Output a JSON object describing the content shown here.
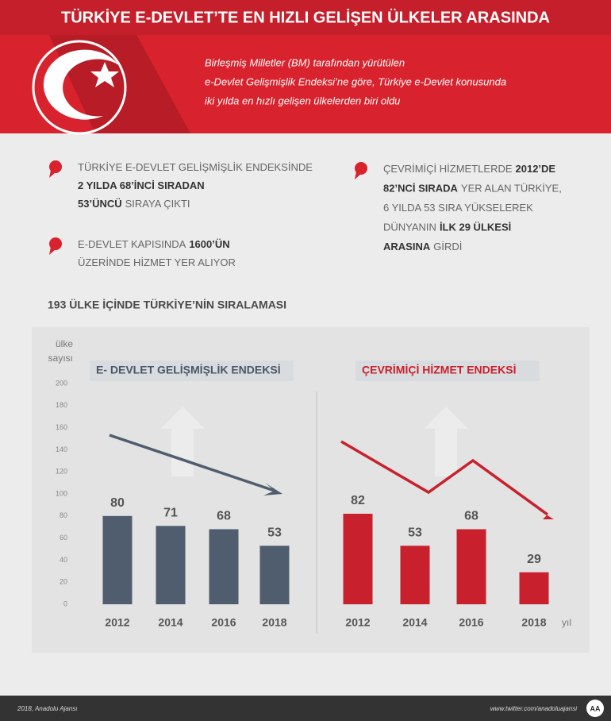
{
  "header": {
    "title": "TÜRKİYE E-DEVLET’TE EN HIZLI GELİŞEN ÜLKELER ARASINDA",
    "subtitle_lines": [
      "Birleşmiş Milletler (BM) tarafından yürütülen",
      "e-Devlet Gelişmişlik Endeksi’ne göre, Türkiye e-Devlet konusunda",
      "iki yılda en hızlı gelişen ülkelerden biri oldu"
    ]
  },
  "bullets": [
    {
      "lines": [
        [
          {
            "text": "TÜRKİYE E-DEVLET GELİŞMİŞLİK ENDEKSİNDE",
            "bold": false
          }
        ],
        [
          {
            "text": "2 YILDA 68’İNCİ SIRADAN",
            "bold": true
          }
        ],
        [
          {
            "text": "53’ÜNCÜ",
            "bold": true
          },
          {
            "text": "SIRAYA ÇIKTI",
            "bold": false
          }
        ]
      ]
    },
    {
      "lines": [
        [
          {
            "text": "E-DEVLET KAPISINDA",
            "bold": false
          },
          {
            "text": "1600’ÜN",
            "bold": true
          }
        ],
        [
          {
            "text": "ÜZERİNDE HİZMET YER ALIYOR",
            "bold": false
          }
        ]
      ]
    },
    {
      "lines": [
        [
          {
            "text": "ÇEVRİMİÇİ HİZMETLERDE",
            "bold": false
          },
          {
            "text": "2012’DE",
            "bold": true
          }
        ],
        [
          {
            "text": "82’NCİ SIRADA",
            "bold": true
          },
          {
            "text": "YER ALAN TÜRKİYE,",
            "bold": false
          }
        ],
        [
          {
            "text": "6 YILDA 53 SIRA YÜKSELEREK",
            "bold": false
          }
        ],
        [
          {
            "text": "DÜNYANIN",
            "bold": false
          },
          {
            "text": "İLK 29 ÜLKESİ",
            "bold": true
          }
        ],
        [
          {
            "text": "ARASINA",
            "bold": true
          },
          {
            "text": "GİRDİ",
            "bold": false
          }
        ]
      ]
    }
  ],
  "section_title": "193 ÜLKE İÇİNDE TÜRKİYE’NİN SIRALAMASI",
  "chart_data": [
    {
      "type": "bar",
      "title": "E- DEVLET GELİŞMİŞLİK ENDEKSİ",
      "categories": [
        "2012",
        "2014",
        "2016",
        "2018"
      ],
      "values": [
        80,
        71,
        68,
        53
      ],
      "color": "#4f5d6e",
      "ylim": [
        0,
        200
      ],
      "yticks": [
        0,
        20,
        40,
        60,
        80,
        100,
        120,
        140,
        160,
        180,
        200
      ],
      "y_label": [
        "ülke",
        "sayısı"
      ]
    },
    {
      "type": "bar",
      "title": "ÇEVRİMİÇİ HİZMET ENDEKSİ",
      "categories": [
        "2012",
        "2014",
        "2016",
        "2018"
      ],
      "values": [
        82,
        53,
        68,
        29
      ],
      "color": "#c8202c",
      "ylim": [
        0,
        200
      ],
      "x_label": "yıl"
    }
  ],
  "footer": {
    "credit": "2018, Anadolu Ajansı",
    "url": "www.twitter.com/anadoluajansi",
    "logo": "AA"
  }
}
